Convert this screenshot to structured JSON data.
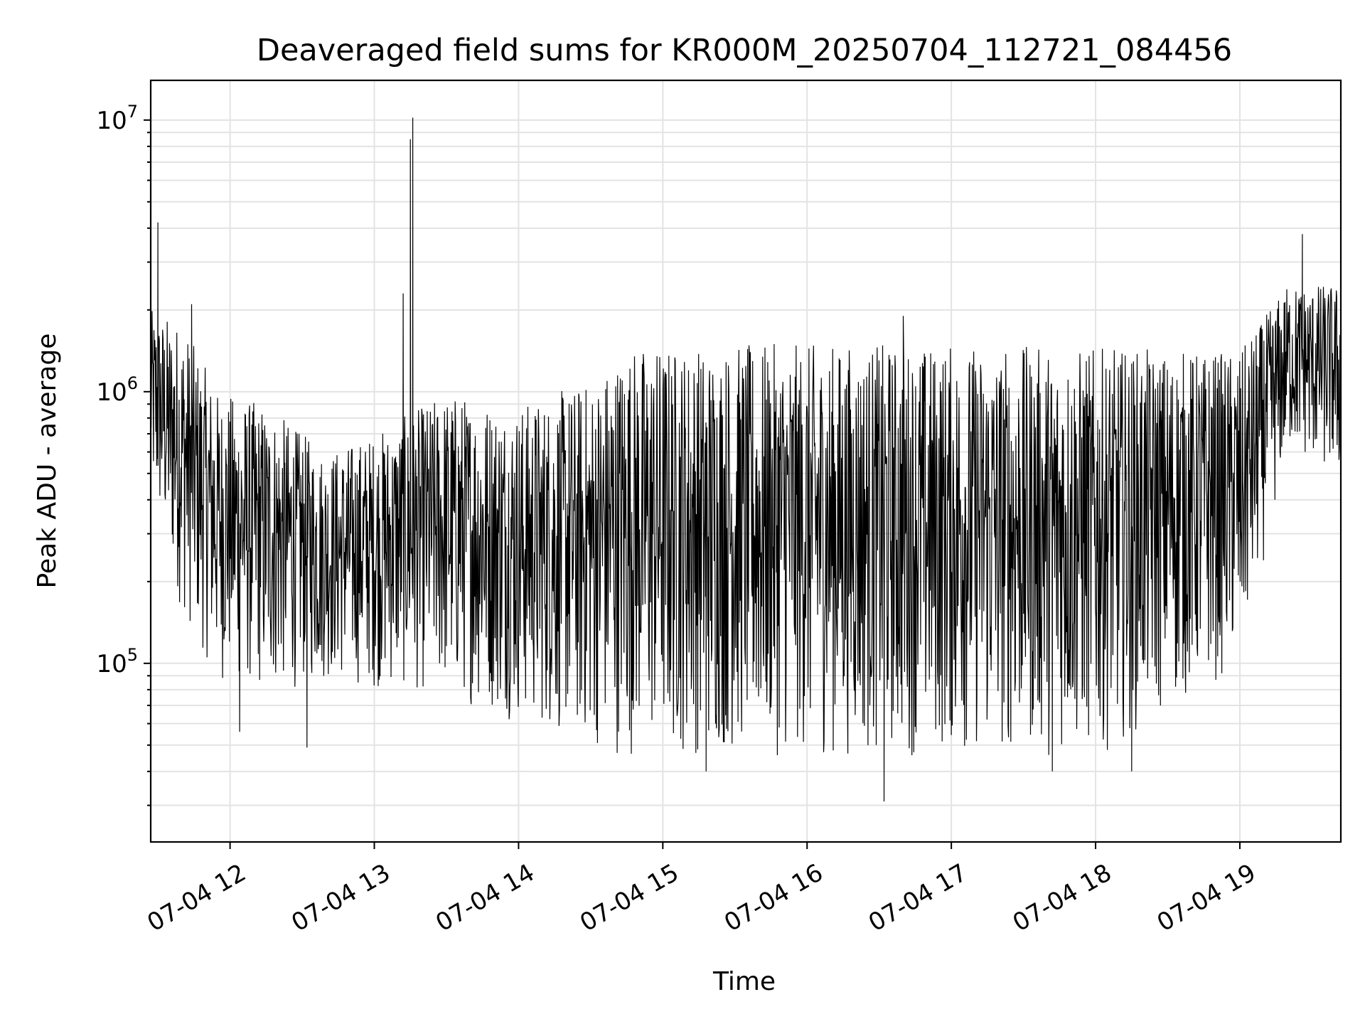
{
  "chart_data": {
    "type": "line",
    "title": "Deaveraged field sums for KR000M_20250704_112721_084456",
    "xlabel": "Time",
    "ylabel": "Peak ADU - average",
    "yscale": "log",
    "ylim": [
      22000,
      14000000
    ],
    "xlim": [
      "2025-07-04 11:27",
      "2025-07-04 19:42"
    ],
    "grid": true,
    "x_ticks": [
      {
        "at": "2025-07-04 12:00",
        "label": "07-04 12"
      },
      {
        "at": "2025-07-04 13:00",
        "label": "07-04 13"
      },
      {
        "at": "2025-07-04 14:00",
        "label": "07-04 14"
      },
      {
        "at": "2025-07-04 15:00",
        "label": "07-04 15"
      },
      {
        "at": "2025-07-04 16:00",
        "label": "07-04 16"
      },
      {
        "at": "2025-07-04 17:00",
        "label": "07-04 17"
      },
      {
        "at": "2025-07-04 18:00",
        "label": "07-04 18"
      },
      {
        "at": "2025-07-04 19:00",
        "label": "07-04 19"
      }
    ],
    "y_ticks": [
      {
        "value": 100000,
        "base": "10",
        "exp": "5"
      },
      {
        "value": 1000000,
        "base": "10",
        "exp": "6"
      },
      {
        "value": 10000000,
        "base": "10",
        "exp": "7"
      }
    ],
    "envelope": [
      {
        "t": "2025-07-04 11:27",
        "low": 400000,
        "high": 2000000
      },
      {
        "t": "2025-07-04 11:40",
        "low": 150000,
        "high": 1800000
      },
      {
        "t": "2025-07-04 11:55",
        "low": 85000,
        "high": 1000000
      },
      {
        "t": "2025-07-04 12:15",
        "low": 75000,
        "high": 900000
      },
      {
        "t": "2025-07-04 12:40",
        "low": 85000,
        "high": 600000
      },
      {
        "t": "2025-07-04 13:00",
        "low": 80000,
        "high": 700000
      },
      {
        "t": "2025-07-04 13:30",
        "low": 75000,
        "high": 1000000
      },
      {
        "t": "2025-07-04 14:00",
        "low": 60000,
        "high": 900000
      },
      {
        "t": "2025-07-04 14:30",
        "low": 48000,
        "high": 1100000
      },
      {
        "t": "2025-07-04 14:45",
        "low": 45000,
        "high": 1500000
      },
      {
        "t": "2025-07-04 15:15",
        "low": 45000,
        "high": 1500000
      },
      {
        "t": "2025-07-04 16:00",
        "low": 45000,
        "high": 1500000
      },
      {
        "t": "2025-07-04 17:00",
        "low": 45000,
        "high": 1500000
      },
      {
        "t": "2025-07-04 18:00",
        "low": 45000,
        "high": 1450000
      },
      {
        "t": "2025-07-04 19:00",
        "low": 95000,
        "high": 1400000
      },
      {
        "t": "2025-07-04 19:20",
        "low": 600000,
        "high": 2500000
      },
      {
        "t": "2025-07-04 19:42",
        "low": 450000,
        "high": 2500000
      }
    ],
    "peaks": [
      {
        "t": "2025-07-04 11:30",
        "value": 4200000
      },
      {
        "t": "2025-07-04 11:44",
        "value": 2100000
      },
      {
        "t": "2025-07-04 13:12",
        "value": 2300000
      },
      {
        "t": "2025-07-04 13:15",
        "value": 8500000
      },
      {
        "t": "2025-07-04 13:16",
        "value": 10200000
      },
      {
        "t": "2025-07-04 16:40",
        "value": 1900000
      },
      {
        "t": "2025-07-04 19:26",
        "value": 3800000
      }
    ],
    "troughs": [
      {
        "t": "2025-07-04 12:04",
        "value": 56000
      },
      {
        "t": "2025-07-04 12:32",
        "value": 49000
      },
      {
        "t": "2025-07-04 15:18",
        "value": 40000
      },
      {
        "t": "2025-07-04 16:32",
        "value": 31000
      },
      {
        "t": "2025-07-04 17:42",
        "value": 40000
      },
      {
        "t": "2025-07-04 18:15",
        "value": 40000
      }
    ]
  }
}
